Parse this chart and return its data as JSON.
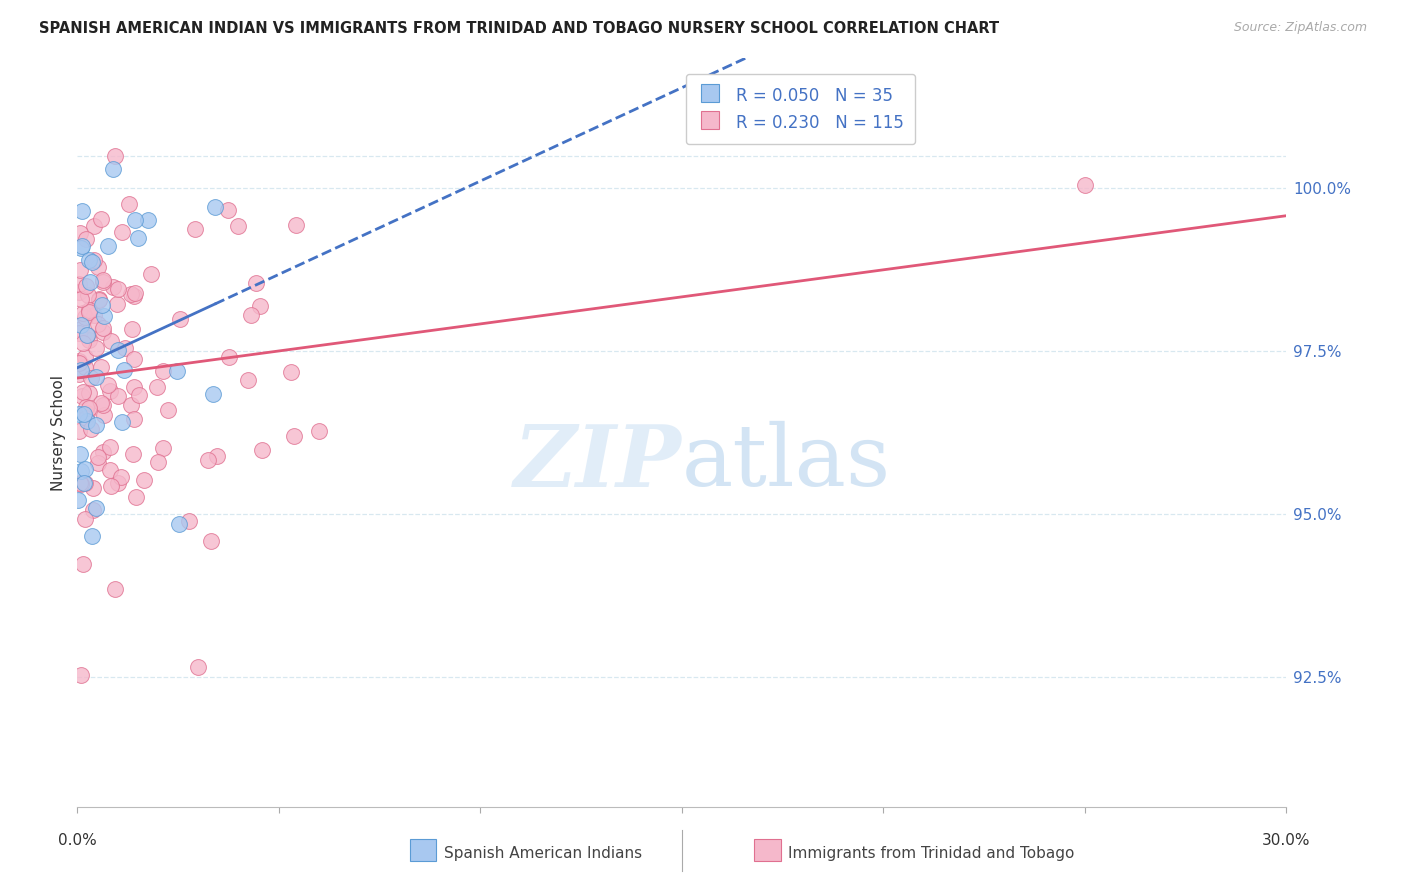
{
  "title": "SPANISH AMERICAN INDIAN VS IMMIGRANTS FROM TRINIDAD AND TOBAGO NURSERY SCHOOL CORRELATION CHART",
  "source": "Source: ZipAtlas.com",
  "ylabel": "Nursery School",
  "x_min": 0.0,
  "x_max": 30.0,
  "y_min": 90.5,
  "y_max": 102.0,
  "y_ticks": [
    92.5,
    95.0,
    97.5,
    100.0
  ],
  "y_tick_labels": [
    "92.5%",
    "95.0%",
    "97.5%",
    "100.0%"
  ],
  "legend_blue_r": "R = 0.050",
  "legend_blue_n": "N = 35",
  "legend_pink_r": "R = 0.230",
  "legend_pink_n": "N = 115",
  "legend_blue_label": "Spanish American Indians",
  "legend_pink_label": "Immigrants from Trinidad and Tobago",
  "blue_color": "#A8C8F0",
  "blue_edge_color": "#5B9BD5",
  "blue_line_color": "#4472C4",
  "pink_color": "#F5B8CB",
  "pink_edge_color": "#E07090",
  "pink_line_color": "#E05878",
  "watermark_zip": "ZIP",
  "watermark_atlas": "atlas",
  "background_color": "#FFFFFF",
  "grid_color": "#D8E8F0",
  "grid_style": "--"
}
